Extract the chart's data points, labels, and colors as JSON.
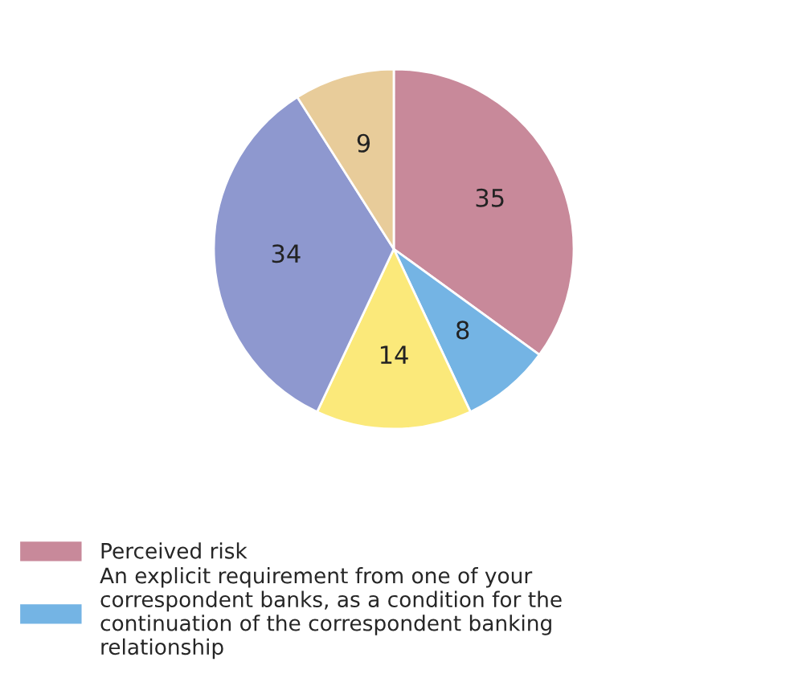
{
  "chart_data": {
    "type": "pie",
    "categories": [
      "Perceived risk",
      "An explicit requirement from one of your correspondent banks, as a condition for the continuation of the correspondent banking relationship",
      null,
      null,
      null
    ],
    "values": [
      35,
      8,
      14,
      34,
      9
    ],
    "colors": [
      "#c8899a",
      "#74b4e4",
      "#fbe97a",
      "#8e98cf",
      "#e8cc9a"
    ],
    "data_labels": true,
    "legend": "bottom"
  }
}
